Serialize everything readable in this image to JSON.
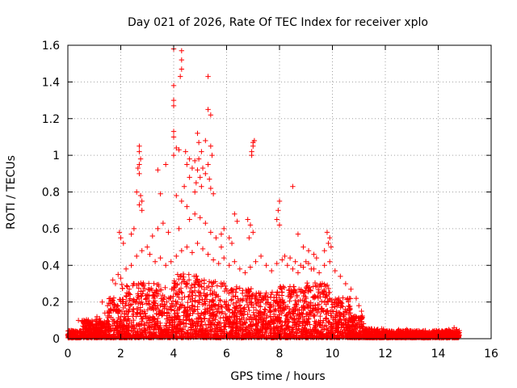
{
  "chart_data": {
    "type": "scatter",
    "title": "Day 021 of 2026, Rate Of TEC Index for receiver xplo",
    "xlabel": "GPS time / hours",
    "ylabel": "ROTI / TECUs",
    "xlim": [
      0,
      16
    ],
    "ylim": [
      0,
      1.6
    ],
    "xticks": [
      0,
      2,
      4,
      6,
      8,
      10,
      12,
      14,
      16
    ],
    "yticks": [
      0,
      0.2,
      0.4,
      0.6,
      0.8,
      1,
      1.2,
      1.4,
      1.6
    ],
    "xtick_labels": [
      "0",
      "2",
      "4",
      "6",
      "8",
      "10",
      "12",
      "14",
      "16"
    ],
    "ytick_labels": [
      "0",
      "0.2",
      "0.4",
      "0.6",
      "0.8",
      "1",
      "1.2",
      "1.4",
      "1.6"
    ],
    "grid": true,
    "marker": "plus",
    "color": "#ff0000",
    "series": [
      {
        "points": [
          [
            4.0,
            1.58
          ],
          [
            4.3,
            1.57
          ],
          [
            4.3,
            1.52
          ],
          [
            4.3,
            1.47
          ],
          [
            4.25,
            1.43
          ],
          [
            4.0,
            1.38
          ],
          [
            5.3,
            1.43
          ],
          [
            4.0,
            1.3
          ],
          [
            4.0,
            1.27
          ],
          [
            5.3,
            1.25
          ],
          [
            5.4,
            1.22
          ],
          [
            5.2,
            1.08
          ],
          [
            4.0,
            1.13
          ],
          [
            4.0,
            1.1
          ],
          [
            4.1,
            1.04
          ],
          [
            4.2,
            1.03
          ],
          [
            4.45,
            1.02
          ],
          [
            4.6,
            0.98
          ],
          [
            4.0,
            1.0
          ],
          [
            4.5,
            0.95
          ],
          [
            4.7,
            0.93
          ],
          [
            4.6,
            0.88
          ],
          [
            4.4,
            0.83
          ],
          [
            4.8,
            0.8
          ],
          [
            4.9,
            1.12
          ],
          [
            4.95,
            1.07
          ],
          [
            5.05,
            1.02
          ],
          [
            4.95,
            0.98
          ],
          [
            5.1,
            0.93
          ],
          [
            5.2,
            0.9
          ],
          [
            5.4,
            1.05
          ],
          [
            5.45,
            1.0
          ],
          [
            5.3,
            0.95
          ],
          [
            5.35,
            0.87
          ],
          [
            5.4,
            0.82
          ],
          [
            5.5,
            0.79
          ],
          [
            4.8,
            0.97
          ],
          [
            4.9,
            0.92
          ],
          [
            5.0,
            0.88
          ],
          [
            4.85,
            0.85
          ],
          [
            5.05,
            0.83
          ],
          [
            2.7,
            1.05
          ],
          [
            2.7,
            1.02
          ],
          [
            2.75,
            0.98
          ],
          [
            2.7,
            0.95
          ],
          [
            2.65,
            0.93
          ],
          [
            2.7,
            0.9
          ],
          [
            2.6,
            0.8
          ],
          [
            2.75,
            0.78
          ],
          [
            2.8,
            0.75
          ],
          [
            2.7,
            0.73
          ],
          [
            2.8,
            0.7
          ],
          [
            3.4,
            0.92
          ],
          [
            3.7,
            0.95
          ],
          [
            3.5,
            0.79
          ],
          [
            4.1,
            0.78
          ],
          [
            4.3,
            0.75
          ],
          [
            4.5,
            0.72
          ],
          [
            7.0,
            1.07
          ],
          [
            7.0,
            1.05
          ],
          [
            6.95,
            1.02
          ],
          [
            6.95,
            1.0
          ],
          [
            7.05,
            1.08
          ],
          [
            8.5,
            0.83
          ],
          [
            8.0,
            0.75
          ],
          [
            7.95,
            0.7
          ],
          [
            7.9,
            0.65
          ],
          [
            8.0,
            0.62
          ],
          [
            6.3,
            0.68
          ],
          [
            6.4,
            0.64
          ],
          [
            6.8,
            0.65
          ],
          [
            6.9,
            0.62
          ],
          [
            7.0,
            0.58
          ],
          [
            6.85,
            0.55
          ],
          [
            5.9,
            0.6
          ],
          [
            6.1,
            0.55
          ],
          [
            6.2,
            0.52
          ],
          [
            5.8,
            0.57
          ],
          [
            9.8,
            0.58
          ],
          [
            9.9,
            0.55
          ],
          [
            9.85,
            0.52
          ],
          [
            9.95,
            0.5
          ],
          [
            9.7,
            0.48
          ],
          [
            8.2,
            0.45
          ],
          [
            8.4,
            0.44
          ],
          [
            8.6,
            0.42
          ],
          [
            8.7,
            0.57
          ],
          [
            8.9,
            0.5
          ],
          [
            9.1,
            0.48
          ],
          [
            9.3,
            0.46
          ],
          [
            9.4,
            0.44
          ],
          [
            9.0,
            0.42
          ],
          [
            8.8,
            0.4
          ],
          [
            9.2,
            0.38
          ],
          [
            2.0,
            0.55
          ],
          [
            2.1,
            0.52
          ],
          [
            1.95,
            0.58
          ],
          [
            2.5,
            0.6
          ],
          [
            2.4,
            0.57
          ],
          [
            3.2,
            0.56
          ],
          [
            3.4,
            0.6
          ],
          [
            3.6,
            0.63
          ],
          [
            3.8,
            0.58
          ],
          [
            4.2,
            0.6
          ],
          [
            4.6,
            0.65
          ],
          [
            4.8,
            0.68
          ],
          [
            5.0,
            0.66
          ],
          [
            5.2,
            0.63
          ],
          [
            5.4,
            0.58
          ],
          [
            5.6,
            0.55
          ],
          [
            5.8,
            0.5
          ],
          [
            1.7,
            0.32
          ],
          [
            1.8,
            0.3
          ],
          [
            1.9,
            0.35
          ],
          [
            2.0,
            0.33
          ],
          [
            2.2,
            0.38
          ],
          [
            2.4,
            0.4
          ],
          [
            2.6,
            0.45
          ],
          [
            2.8,
            0.48
          ],
          [
            3.0,
            0.5
          ],
          [
            3.1,
            0.46
          ],
          [
            3.3,
            0.42
          ],
          [
            3.5,
            0.44
          ],
          [
            3.7,
            0.4
          ],
          [
            3.9,
            0.42
          ],
          [
            4.1,
            0.45
          ],
          [
            4.3,
            0.48
          ],
          [
            4.5,
            0.5
          ],
          [
            4.7,
            0.47
          ],
          [
            4.9,
            0.52
          ],
          [
            5.1,
            0.49
          ],
          [
            5.3,
            0.46
          ],
          [
            5.5,
            0.43
          ],
          [
            5.7,
            0.41
          ],
          [
            5.9,
            0.44
          ],
          [
            6.1,
            0.4
          ],
          [
            6.3,
            0.42
          ],
          [
            6.5,
            0.38
          ],
          [
            6.7,
            0.36
          ],
          [
            6.9,
            0.39
          ],
          [
            7.1,
            0.42
          ],
          [
            7.3,
            0.45
          ],
          [
            7.5,
            0.4
          ],
          [
            7.7,
            0.37
          ],
          [
            7.9,
            0.41
          ],
          [
            8.1,
            0.43
          ],
          [
            8.3,
            0.4
          ],
          [
            8.5,
            0.38
          ],
          [
            8.7,
            0.36
          ],
          [
            8.9,
            0.39
          ],
          [
            9.1,
            0.41
          ],
          [
            9.3,
            0.38
          ],
          [
            9.5,
            0.36
          ],
          [
            9.7,
            0.4
          ],
          [
            9.9,
            0.42
          ],
          [
            10.1,
            0.37
          ],
          [
            10.3,
            0.34
          ],
          [
            10.5,
            0.3
          ],
          [
            10.7,
            0.27
          ],
          [
            10.9,
            0.22
          ],
          [
            11.0,
            0.18
          ],
          [
            11.1,
            0.15
          ],
          [
            0.4,
            0.1
          ],
          [
            0.6,
            0.08
          ],
          [
            0.8,
            0.09
          ],
          [
            1.0,
            0.07
          ],
          [
            1.2,
            0.11
          ],
          [
            1.4,
            0.14
          ],
          [
            1.5,
            0.18
          ],
          [
            1.6,
            0.22
          ],
          [
            1.3,
            0.2
          ],
          [
            1.1,
            0.12
          ],
          [
            11.5,
            0.04
          ],
          [
            12.0,
            0.04
          ],
          [
            12.5,
            0.05
          ],
          [
            12.8,
            0.05
          ],
          [
            13.2,
            0.04
          ],
          [
            13.6,
            0.03
          ],
          [
            14.0,
            0.04
          ],
          [
            14.4,
            0.05
          ],
          [
            14.6,
            0.06
          ],
          [
            14.7,
            0.05
          ]
        ]
      }
    ],
    "background": {
      "ranges": [
        [
          0.0,
          0.5,
          0.04
        ],
        [
          0.5,
          1.5,
          0.1
        ],
        [
          1.5,
          2.0,
          0.22
        ],
        [
          2.0,
          3.0,
          0.3
        ],
        [
          3.0,
          4.0,
          0.3
        ],
        [
          4.0,
          5.0,
          0.35
        ],
        [
          5.0,
          6.0,
          0.32
        ],
        [
          6.0,
          7.0,
          0.28
        ],
        [
          7.0,
          8.0,
          0.25
        ],
        [
          8.0,
          9.0,
          0.28
        ],
        [
          9.0,
          10.0,
          0.3
        ],
        [
          10.0,
          10.7,
          0.22
        ],
        [
          10.7,
          11.2,
          0.12
        ],
        [
          11.2,
          12.0,
          0.05
        ],
        [
          12.0,
          14.8,
          0.04
        ]
      ]
    }
  }
}
